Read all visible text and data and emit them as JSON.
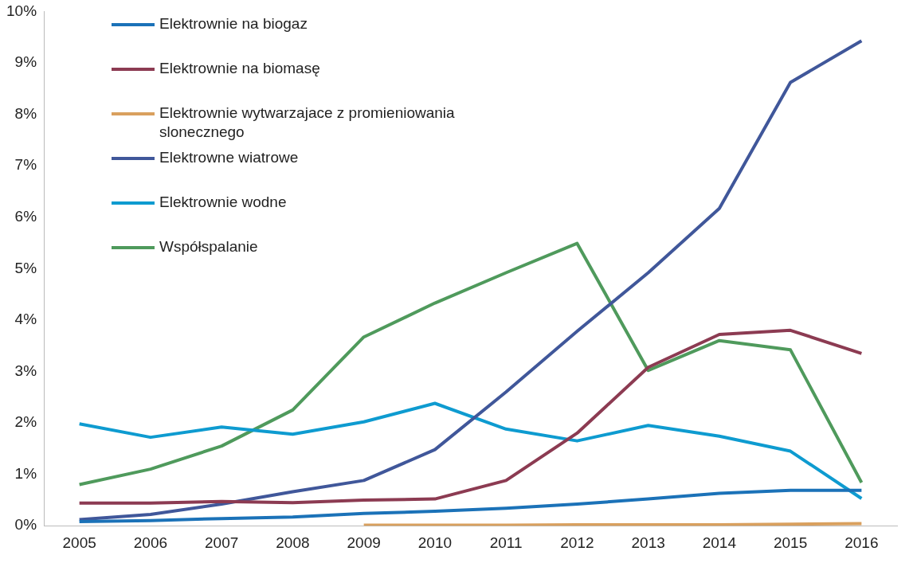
{
  "chart_data": {
    "type": "line",
    "categories": [
      "2005",
      "2006",
      "2007",
      "2008",
      "2009",
      "2010",
      "2011",
      "2012",
      "2013",
      "2014",
      "2015",
      "2016"
    ],
    "series": [
      {
        "name": "Elektrownie na biogaz",
        "color": "#1b72b8",
        "values": [
          0.08,
          0.1,
          0.14,
          0.17,
          0.24,
          0.28,
          0.34,
          0.42,
          0.52,
          0.63,
          0.69,
          0.69
        ]
      },
      {
        "name": "Elektrownie na biomasę",
        "color": "#8c3b52",
        "values": [
          0.44,
          0.44,
          0.47,
          0.45,
          0.5,
          0.52,
          0.88,
          1.8,
          3.08,
          3.72,
          3.8,
          3.35
        ]
      },
      {
        "name": "Elektrownie wytwarzajace z promieniowania slonecznego",
        "color": "#d9a05e",
        "values": [
          null,
          null,
          null,
          null,
          0.01,
          0.01,
          0.01,
          0.02,
          0.02,
          0.02,
          0.03,
          0.04
        ]
      },
      {
        "name": "Elektrowne wiatrowe",
        "color": "#40579a",
        "values": [
          0.12,
          0.22,
          0.42,
          0.66,
          0.88,
          1.48,
          2.6,
          3.78,
          4.92,
          6.17,
          8.62,
          9.43
        ]
      },
      {
        "name": "Elektrownie wodne",
        "color": "#0e9bd0",
        "values": [
          1.98,
          1.72,
          1.92,
          1.78,
          2.02,
          2.38,
          1.88,
          1.65,
          1.95,
          1.74,
          1.45,
          0.53
        ]
      },
      {
        "name": "Współspalanie",
        "color": "#4f9a5c",
        "values": [
          0.8,
          1.1,
          1.55,
          2.25,
          3.67,
          4.33,
          4.92,
          5.49,
          3.02,
          3.6,
          3.42,
          0.84
        ]
      }
    ],
    "ylim": [
      0,
      10
    ],
    "yticks": [
      {
        "value": 0,
        "label": "0%"
      },
      {
        "value": 1,
        "label": "1%"
      },
      {
        "value": 2,
        "label": "2%"
      },
      {
        "value": 3,
        "label": "3%"
      },
      {
        "value": 4,
        "label": "4%"
      },
      {
        "value": 5,
        "label": "5%"
      },
      {
        "value": 6,
        "label": "6%"
      },
      {
        "value": 7,
        "label": "7%"
      },
      {
        "value": 8,
        "label": "8%"
      },
      {
        "value": 9,
        "label": "9%"
      },
      {
        "value": 10,
        "label": "10%"
      }
    ],
    "grid": false,
    "legend": "top left",
    "marker": "none",
    "line_style": "solid"
  }
}
